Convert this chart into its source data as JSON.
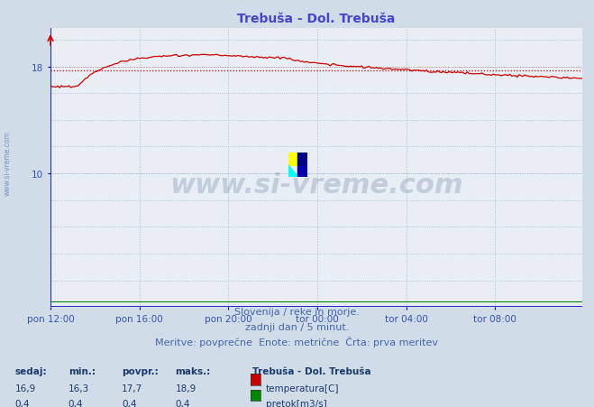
{
  "title": "Trebuša - Dol. Trebuša",
  "title_color": "#4444cc",
  "title_fontsize": 10,
  "bg_color": "#d0dce8",
  "plot_bg_color": "#e8eef4",
  "grid_color": "#aabbcc",
  "grid_color_red": "#cc8888",
  "spine_color": "#0000bb",
  "xlabel_ticks": [
    "pon 12:00",
    "pon 16:00",
    "pon 20:00",
    "tor 00:00",
    "tor 04:00",
    "tor 08:00"
  ],
  "xlabel_tick_positions": [
    0,
    48,
    96,
    144,
    192,
    240
  ],
  "total_points": 288,
  "ylim": [
    0,
    20.9
  ],
  "yticks": [
    10,
    18
  ],
  "temp_avg": 17.7,
  "temp_min": 16.3,
  "temp_max": 18.9,
  "temp_current": 16.9,
  "flow_avg": 0.4,
  "flow_min": 0.4,
  "flow_max": 0.4,
  "flow_current": 0.4,
  "temp_line_color": "#cc0000",
  "flow_line_color": "#008800",
  "avg_line_color": "#cc0000",
  "watermark_text": "www.si-vreme.com",
  "watermark_color": "#1a3a6b",
  "watermark_alpha": 0.18,
  "footer_line1": "Slovenija / reke in morje.",
  "footer_line2": "zadnji dan / 5 minut.",
  "footer_line3": "Meritve: povprečne  Enote: metrične  Črta: prva meritev",
  "footer_color": "#4466aa",
  "footer_fontsize": 8,
  "legend_title": "Trebuša - Dol. Trebuša",
  "legend_color": "#1a3a6b",
  "sidebar_text": "www.si-vreme.com",
  "sidebar_color": "#3355aa",
  "tick_color": "#3355aa",
  "tick_fontsize": 7.5
}
